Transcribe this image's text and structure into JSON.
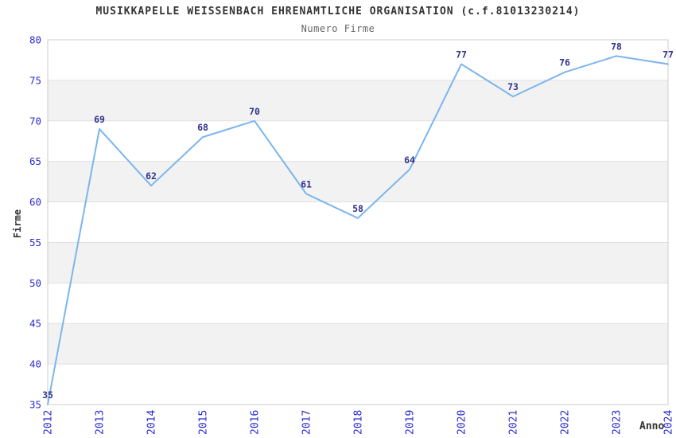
{
  "header": {
    "title": "MUSIKKAPELLE WEISSENBACH EHRENAMTLICHE ORGANISATION (c.f.81013230214)",
    "subtitle": "Numero Firme"
  },
  "axes": {
    "y_title": "Firme",
    "x_title": "Anno"
  },
  "chart_data": {
    "type": "line",
    "title": "MUSIKKAPELLE WEISSENBACH EHRENAMTLICHE ORGANISATION (c.f.81013230214)",
    "subtitle": "Numero Firme",
    "xlabel": "Anno",
    "ylabel": "Firme",
    "categories": [
      "2012",
      "2013",
      "2014",
      "2015",
      "2016",
      "2017",
      "2018",
      "2019",
      "2020",
      "2021",
      "2022",
      "2023",
      "2024"
    ],
    "series": [
      {
        "name": "Numero Firme",
        "values": [
          35,
          69,
          62,
          68,
          70,
          61,
          58,
          64,
          77,
          73,
          76,
          78,
          77
        ]
      }
    ],
    "data_labels_shown": true,
    "ylim": [
      35,
      80
    ],
    "ytick_step": 5,
    "yticks": [
      35,
      40,
      45,
      50,
      55,
      60,
      65,
      70,
      75,
      80
    ],
    "grid": true,
    "legend_position": "none",
    "alternating_bands": [
      [
        40,
        45
      ],
      [
        50,
        55
      ],
      [
        60,
        65
      ],
      [
        70,
        75
      ]
    ]
  },
  "colors": {
    "line": "#7cb5ec",
    "data_label": "#32328c",
    "tick_label": "#2b2bd5",
    "axis_title": "#333333",
    "title": "#333333",
    "subtitle": "#666666",
    "band_fill": "#f2f2f2",
    "gridline": "#e0e0e0",
    "plot_border": "#cccccc",
    "background": "#ffffff"
  }
}
